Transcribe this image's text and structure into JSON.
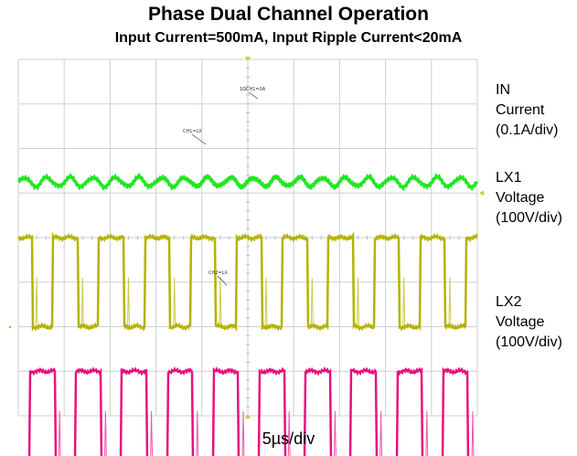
{
  "title": "Phase Dual Channel Operation",
  "subtitle": "Input Current=500mA, Input Ripple Current<20mA",
  "x_axis_label": "5µs/div",
  "channels": [
    {
      "name": "IN",
      "lines": [
        "Current",
        "(0.1A/div)"
      ]
    },
    {
      "name": "LX1",
      "lines": [
        "Voltage",
        "(100V/div)"
      ]
    },
    {
      "name": "LX2",
      "lines": [
        "Voltage",
        "(100V/div)"
      ]
    }
  ],
  "chart_data": {
    "type": "line",
    "title": "Phase Dual Channel Operation",
    "subtitle": "Input Current=500mA, Input Ripple Current<20mA",
    "xlabel": "5µs/div",
    "ylabel": "",
    "grid": true,
    "divisions": {
      "x": 10,
      "y": 8
    },
    "time_per_div_us": 5,
    "switching_period_div": 1.0,
    "series": [
      {
        "name": "IN",
        "unit": "A",
        "scale_per_div": 0.1,
        "color": "#22e622",
        "waveform": "ripple",
        "mean": 0.5,
        "ripple_pp": 0.02,
        "offset_div": 1.25
      },
      {
        "name": "LX1",
        "unit": "V",
        "scale_per_div": 100,
        "color": "#b3b300",
        "waveform": "square",
        "low": 0,
        "high": 200,
        "duty": 0.55,
        "phase_div": -0.25,
        "offset_div": -2.0
      },
      {
        "name": "LX2",
        "unit": "V",
        "scale_per_div": 100,
        "color": "#e6127f",
        "waveform": "square",
        "low": 0,
        "high": 200,
        "duty": 0.55,
        "phase_div": 0.25,
        "offset_div": -5.0
      }
    ],
    "annotations": [
      "1ΩCH1=0A",
      "CH1=LX",
      "CH2=LX"
    ]
  }
}
